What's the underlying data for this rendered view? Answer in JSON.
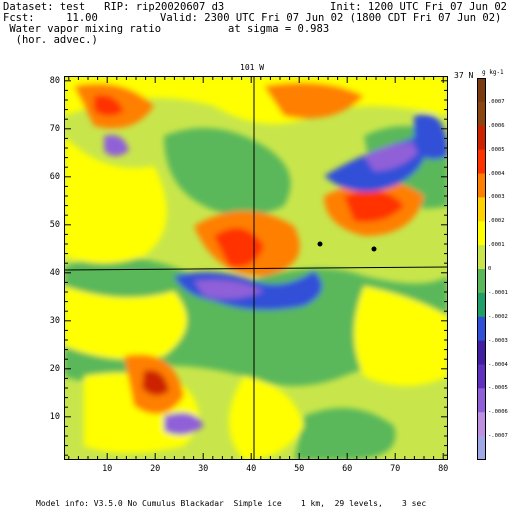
{
  "header": {
    "dataset_line": "Dataset: test   RIP: rip20020607 d3",
    "init_line": "Init: 1200 UTC Fri 07 Jun 02",
    "fcst_line": "Fcst:     11.00",
    "valid_line": "Valid: 2300 UTC Fri 07 Jun 02 (1800 CDT Fri 07 Jun 02)",
    "field_line": " Water vapor mixing ratio",
    "sigma_line": "at sigma = 0.983",
    "advec_line": "  (hor. advec.)"
  },
  "map": {
    "meridian_label": "101 W",
    "parallel_label": "37 N",
    "x_ticks": [
      "10",
      "20",
      "30",
      "40",
      "50",
      "60",
      "70",
      "80"
    ],
    "y_ticks": [
      "10",
      "20",
      "30",
      "40",
      "50",
      "60",
      "70",
      "80"
    ],
    "xlim": [
      1,
      81
    ],
    "ylim": [
      1,
      81
    ]
  },
  "colorbar": {
    "unit_label": "g kg-1",
    "labels": [
      ".0007",
      ".0006",
      ".0005",
      ".0004",
      ".0003",
      ".0002",
      ".0001",
      "0",
      "-.0001",
      "-.0002",
      "-.0003",
      "-.0004",
      "-.0005",
      "-.0006",
      "-.0007"
    ],
    "colors": [
      "#7a3b12",
      "#8b4513",
      "#cc2200",
      "#ff3300",
      "#ff7f00",
      "#ffd200",
      "#ffff00",
      "#c8e64b",
      "#5ab85a",
      "#20a068",
      "#3050d8",
      "#4020a0",
      "#6030c0",
      "#9060d8",
      "#c090e0",
      "#a0a8e8"
    ]
  },
  "footer": {
    "model_info": "Model info: V3.5.0 No Cumulus Blackadar  Simple ice    1 km,  29 levels,    3 sec"
  }
}
